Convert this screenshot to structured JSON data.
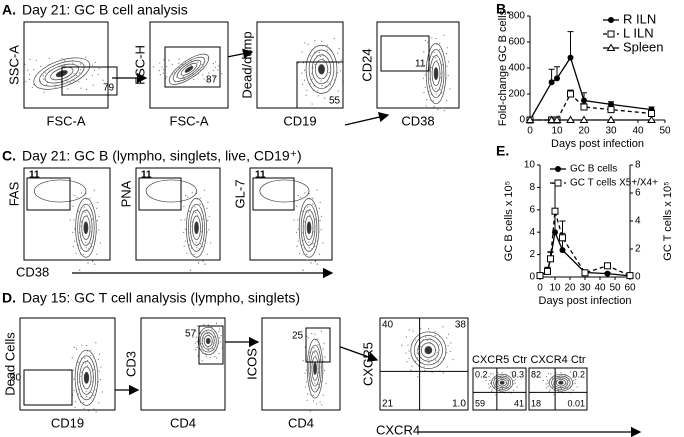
{
  "panels": {
    "A": {
      "label": "A.",
      "title": "Day 21: GC B cell analysis",
      "plots": [
        {
          "y_label": "SSC-A",
          "x_label": "FSC-A",
          "gate": "79"
        },
        {
          "y_label": "FSC-H",
          "x_label": "FSC-A",
          "gate": "87"
        },
        {
          "y_label": "Dead/dump",
          "x_label": "CD19",
          "gate": "55"
        },
        {
          "y_label": "CD24",
          "x_label": "CD38",
          "gate": "11"
        }
      ]
    },
    "B": {
      "label": "B."
    },
    "C": {
      "label": "C.",
      "title": "Day 21: GC B (lympho, singlets, live, CD19⁺)",
      "x_label": "CD38",
      "plots": [
        {
          "y_label": "FAS",
          "gate": "11"
        },
        {
          "y_label": "PNA",
          "gate": "11"
        },
        {
          "y_label": "GL-7",
          "gate": "11"
        }
      ]
    },
    "D": {
      "label": "D.",
      "title": "Day 15: GC T cell analysis (lympho, singlets)",
      "plots": [
        {
          "y_label": "Dead Cells",
          "x_label": "CD19",
          "gate": "30"
        },
        {
          "y_label": "CD3",
          "x_label": "CD4",
          "gate": "57"
        },
        {
          "y_label": "ICOS",
          "x_label": "CD4",
          "gate": "25"
        }
      ],
      "quad_plots": {
        "y_label": "CXCR5",
        "x_label": "CXCR4",
        "plots": [
          {
            "quadrants": [
              "40",
              "38",
              "21",
              "1.0"
            ]
          },
          {
            "title": "CXCR5 Ctr",
            "quadrants": [
              "0.2",
              "0.3",
              "59",
              "41"
            ]
          },
          {
            "title": "CXCR4 Ctr",
            "quadrants": [
              "82",
              "0.2",
              "18",
              "0.01"
            ]
          }
        ]
      }
    },
    "E": {
      "label": "E."
    }
  },
  "chart_data": [
    {
      "type": "line",
      "y_label": "Fold-change GC B cells",
      "x_label": "Days post infection",
      "x": [
        0,
        8,
        10,
        15,
        20,
        30,
        45
      ],
      "xlim": [
        0,
        50
      ],
      "xticks": [
        0,
        10,
        20,
        30,
        40,
        50
      ],
      "ylim": [
        0,
        800
      ],
      "yticks": [
        0,
        200,
        400,
        600,
        800
      ],
      "legend": "upper right",
      "series": [
        {
          "name": "R ILN",
          "color": "#000000",
          "marker": "filled-circle",
          "dash": false,
          "values": [
            0,
            290,
            320,
            480,
            150,
            120,
            80
          ],
          "errors": [
            0,
            100,
            90,
            200,
            60,
            20,
            20
          ]
        },
        {
          "name": "L ILN",
          "color": "#000000",
          "marker": "open-square",
          "dash": true,
          "values": [
            0,
            0,
            0,
            200,
            100,
            80,
            50
          ],
          "errors": [
            0,
            0,
            0,
            30,
            25,
            15,
            10
          ]
        },
        {
          "name": "Spleen",
          "color": "#000000",
          "marker": "open-triangle",
          "dash": false,
          "values": [
            0,
            0,
            0,
            0,
            0,
            0,
            0
          ],
          "errors": [
            0,
            0,
            0,
            0,
            0,
            0,
            0
          ]
        }
      ]
    },
    {
      "type": "line",
      "y_label": "GC B cells x 10⁵",
      "y2_label": "GC T cells x 10⁵",
      "x_label": "Days post infection",
      "x": [
        0,
        5,
        7,
        10,
        15,
        30,
        45,
        60
      ],
      "xlim": [
        0,
        60
      ],
      "xticks": [
        0,
        10,
        20,
        30,
        40,
        50,
        60
      ],
      "ylim": [
        0,
        10
      ],
      "yticks": [
        0,
        2,
        4,
        6,
        8,
        10
      ],
      "y2lim": [
        0,
        8
      ],
      "y2ticks": [
        0,
        2,
        4,
        6,
        8
      ],
      "legend": "upper left",
      "series": [
        {
          "name": "GC B cells",
          "color": "#000000",
          "marker": "filled-circle",
          "dash": false,
          "axis": "y",
          "values": [
            0.1,
            0.5,
            1.6,
            4.0,
            2.4,
            0.4,
            0.3,
            0.1
          ],
          "errors": [
            0.1,
            0.3,
            0.6,
            1.8,
            1.5,
            0.2,
            0.1,
            0.1
          ]
        },
        {
          "name": "GC T cells X5+/X4+",
          "color": "#000000",
          "marker": "open-square",
          "dash": true,
          "axis": "y2",
          "values": [
            0.1,
            0.4,
            1.3,
            4.7,
            2.8,
            0.3,
            0.8,
            0.1
          ],
          "errors": [
            0.1,
            0.3,
            0.5,
            2.0,
            1.2,
            0.1,
            0.2,
            0.1
          ]
        }
      ]
    }
  ]
}
